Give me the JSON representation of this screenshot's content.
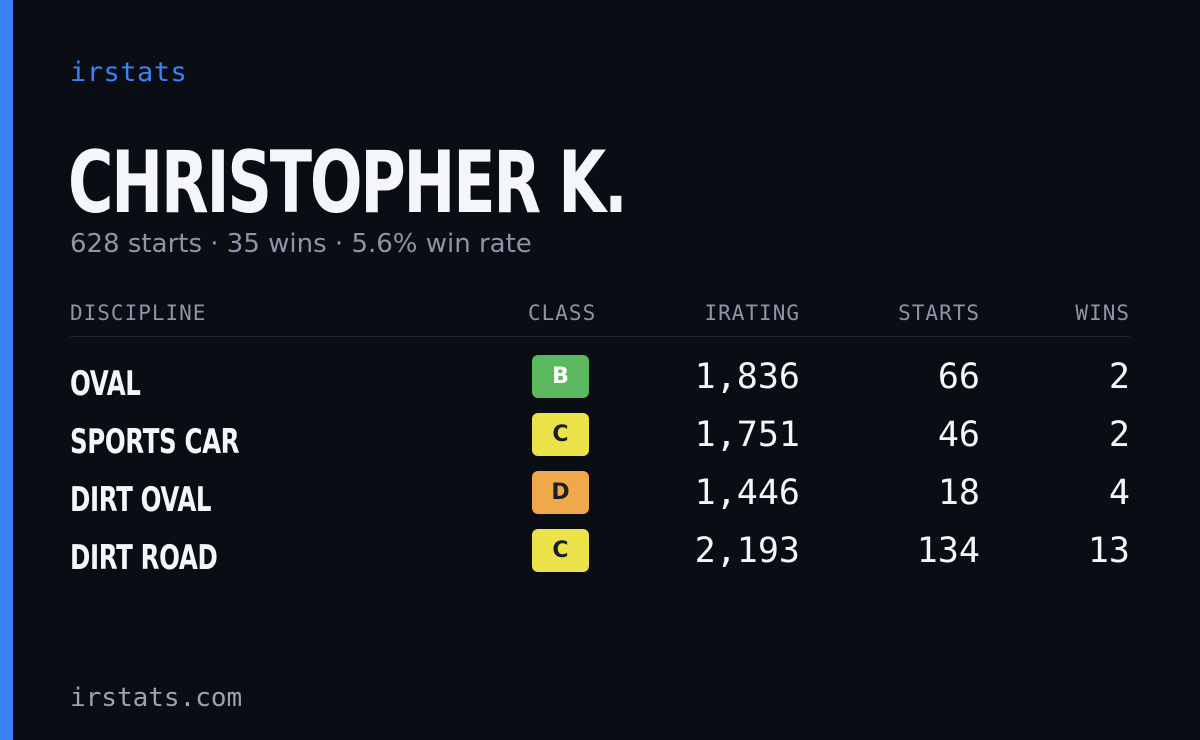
{
  "brand": "irstats",
  "driver": {
    "name": "CHRISTOPHER K.",
    "summary": "628 starts · 35 wins · 5.6% win rate"
  },
  "table": {
    "headers": {
      "discipline": "DISCIPLINE",
      "class": "CLASS",
      "irating": "IRATING",
      "starts": "STARTS",
      "wins": "WINS"
    },
    "rows": [
      {
        "discipline": "OVAL",
        "class": "B",
        "class_color": "#5cb85c",
        "irating": "1,836",
        "starts": "66",
        "wins": "2"
      },
      {
        "discipline": "SPORTS CAR",
        "class": "C",
        "class_color": "#ede24a",
        "irating": "1,751",
        "starts": "46",
        "wins": "2"
      },
      {
        "discipline": "DIRT OVAL",
        "class": "D",
        "class_color": "#efa84a",
        "irating": "1,446",
        "starts": "18",
        "wins": "4"
      },
      {
        "discipline": "DIRT ROAD",
        "class": "C",
        "class_color": "#ede24a",
        "irating": "2,193",
        "starts": "134",
        "wins": "13"
      }
    ]
  },
  "footer": {
    "url": "irstats.com"
  },
  "colors": {
    "background": "#0a0d14",
    "accent": "#3b82f6",
    "muted_text": "#8b95a7",
    "primary_text": "#f4f6fa"
  }
}
